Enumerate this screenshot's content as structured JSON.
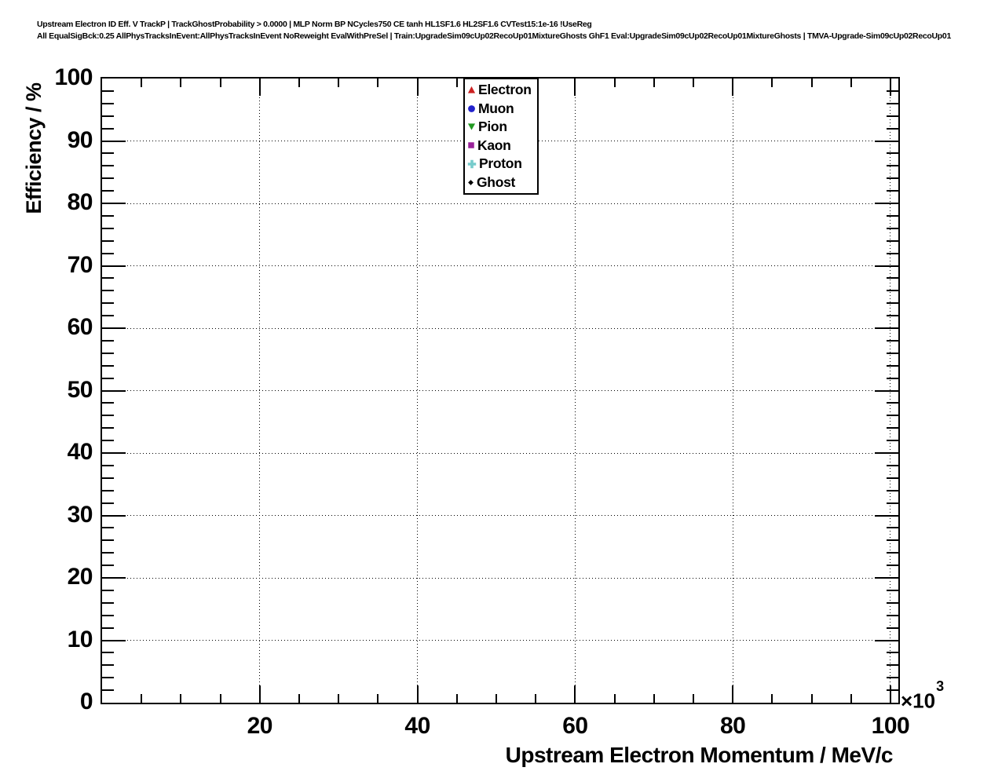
{
  "header": {
    "line1": "Upstream Electron ID Eff. V TrackP | TrackGhostProbability > 0.0000 | MLP Norm BP NCycles750 CE tanh HL1SF1.6 HL2SF1.6 CVTest15:1e-16 !UseReg",
    "line2": "All EqualSigBck:0.25 AllPhysTracksInEvent:AllPhysTracksInEvent NoReweight EvalWithPreSel | Train:UpgradeSim09cUp02RecoUp01MixtureGhosts GhF1 Eval:UpgradeSim09cUp02RecoUp01MixtureGhosts | TMVA-Upgrade-Sim09cUp02RecoUp01"
  },
  "chart_data": {
    "type": "scatter",
    "title": "",
    "xlabel": "Upstream Electron Momentum / MeV/c",
    "ylabel": "Efficiency / %",
    "x_multiplier_label": "×10",
    "x_multiplier_exp": "3",
    "xlim": [
      0,
      101
    ],
    "ylim": [
      0,
      100
    ],
    "x_major_ticks": [
      20,
      40,
      60,
      80,
      100
    ],
    "x_minor_step": 5,
    "x_major_step": 20,
    "y_major_ticks": [
      0,
      10,
      20,
      30,
      40,
      50,
      60,
      70,
      80,
      90,
      100
    ],
    "y_minor_step": 2,
    "y_major_step": 10,
    "grid": "dotted",
    "grid_color": "#000000",
    "legend_position": "top-center",
    "note": "empty frame - no data points plotted",
    "series": [
      {
        "name": "Electron",
        "marker": "triangle-up",
        "color": "#cc2222",
        "x": [],
        "y": []
      },
      {
        "name": "Muon",
        "marker": "circle",
        "color": "#2222cc",
        "x": [],
        "y": []
      },
      {
        "name": "Pion",
        "marker": "triangle-down",
        "color": "#229922",
        "x": [],
        "y": []
      },
      {
        "name": "Kaon",
        "marker": "square",
        "color": "#992299",
        "x": [],
        "y": []
      },
      {
        "name": "Proton",
        "marker": "cross",
        "color": "#77cccc",
        "x": [],
        "y": []
      },
      {
        "name": "Ghost",
        "marker": "diamond",
        "color": "#000000",
        "x": [],
        "y": []
      }
    ]
  }
}
